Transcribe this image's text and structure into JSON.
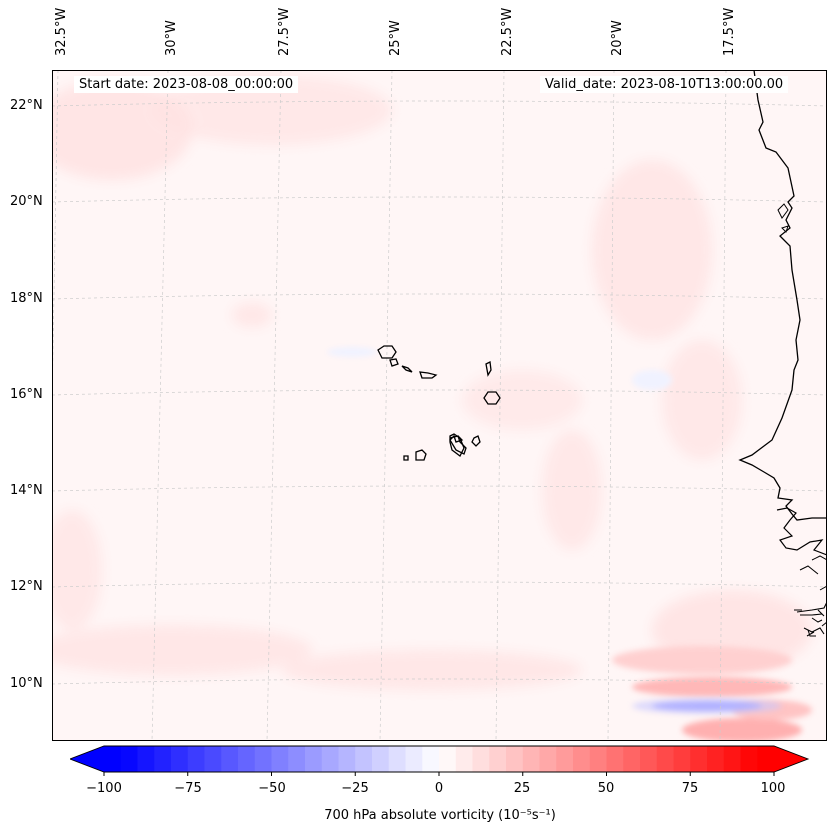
{
  "map": {
    "header": {
      "start_date": "Start date: 2023-08-08_00:00:00",
      "valid_date": "Valid_date: 2023-08-10T13:00:00.00"
    },
    "lon_labels": [
      "32.5°W",
      "30°W",
      "27.5°W",
      "25°W",
      "22.5°W",
      "20°W",
      "17.5°W"
    ],
    "lat_labels": [
      "22°N",
      "20°N",
      "18°N",
      "16°N",
      "14°N",
      "12°N",
      "10°N"
    ],
    "field": "700 hPa absolute vorticity"
  },
  "colorbar": {
    "ticks": [
      "−100",
      "−75",
      "−50",
      "−25",
      "0",
      "25",
      "50",
      "75",
      "100"
    ],
    "label": "700 hPa absolute vorticity (10⁻⁵s⁻¹)",
    "min_color": "#0000ff",
    "mid_color": "#ffffff",
    "max_color": "#ff0000"
  }
}
